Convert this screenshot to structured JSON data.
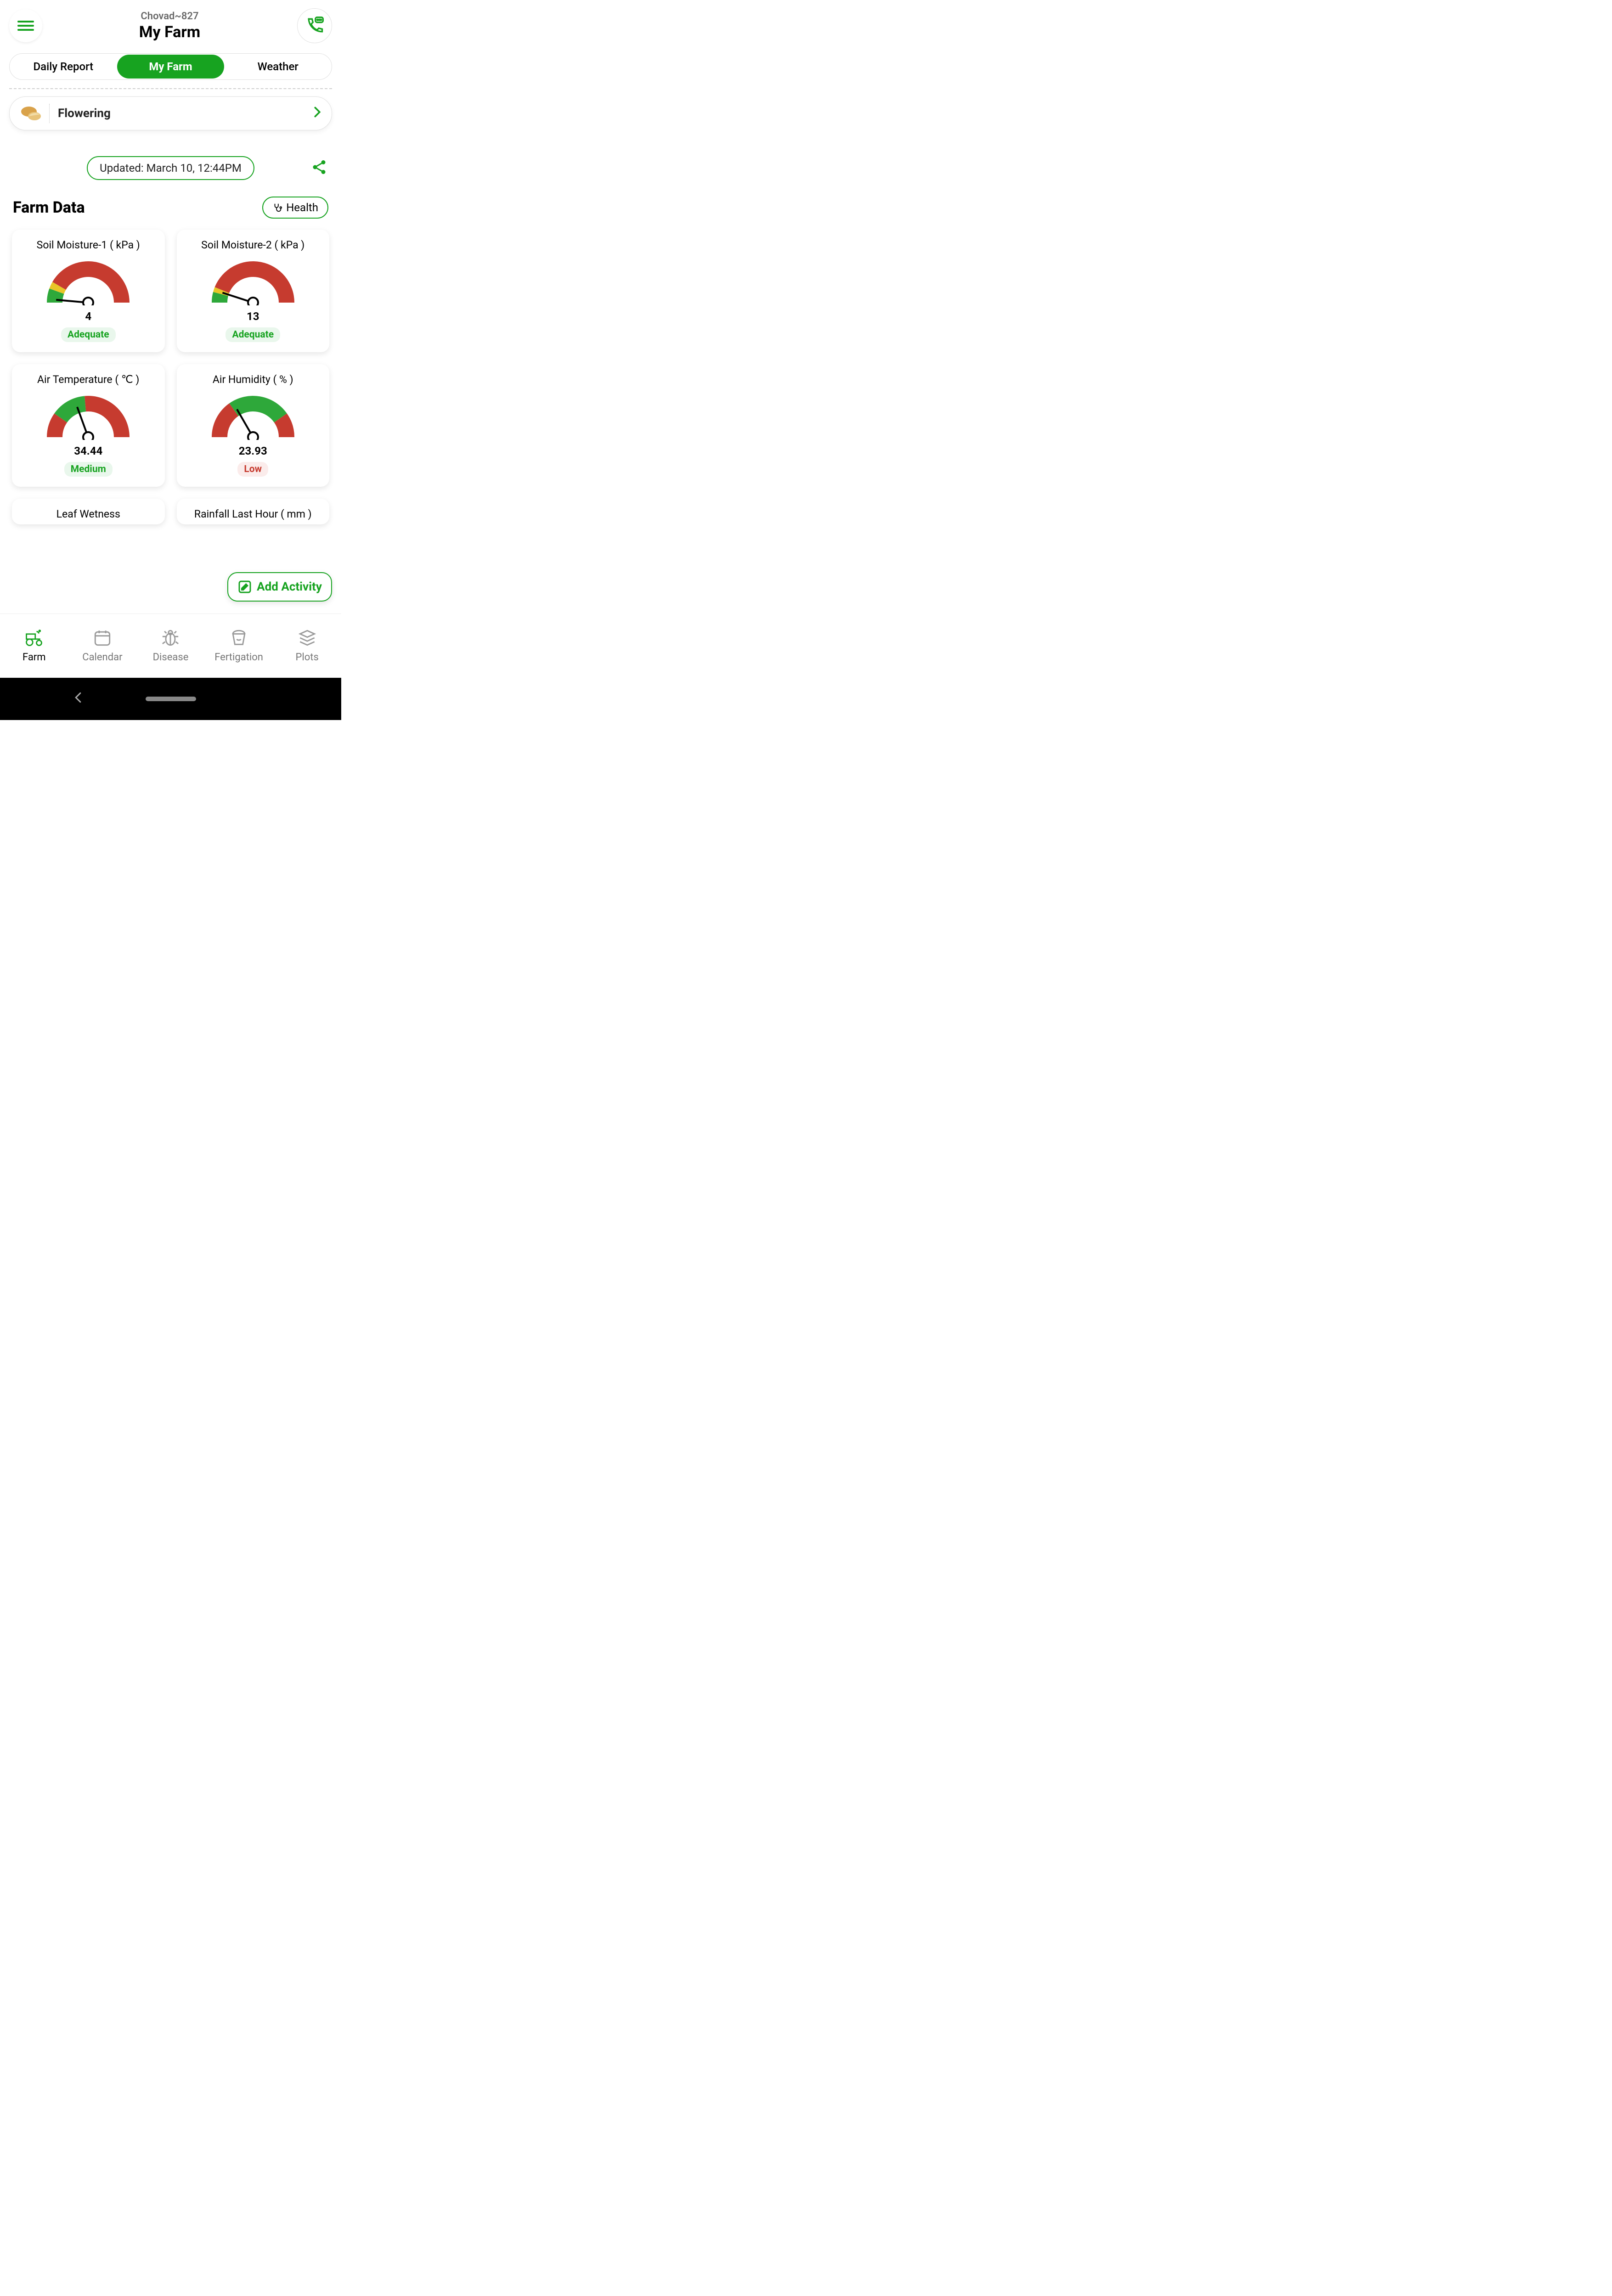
{
  "colors": {
    "primary": "#17a320",
    "gauge_red": "#c63b2f",
    "gauge_yellow": "#e8c627",
    "gauge_green": "#2ea83a",
    "text_muted": "#6a6a6a",
    "potato1": "#d9a24a",
    "potato2": "#e8c37a",
    "nav_inactive": "#9a9a9a"
  },
  "header": {
    "farm_id": "Chovad~827",
    "page_title": "My Farm"
  },
  "tabs": [
    {
      "label": "Daily Report",
      "active": false
    },
    {
      "label": "My Farm",
      "active": true
    },
    {
      "label": "Weather",
      "active": false
    }
  ],
  "crop_stage": {
    "name": "Flowering",
    "crop_icon": "potato"
  },
  "updated_label": "Updated: March 10, 12:44PM",
  "section": {
    "title": "Farm Data",
    "health_button": "Health"
  },
  "gauges": [
    {
      "title": "Soil Moisture-1 ( kPa )",
      "value": "4",
      "status_text": "Adequate",
      "status_class": "status-green",
      "needle_angle_deg": -85,
      "segments": [
        {
          "start": -90,
          "end": -70,
          "color": "#2ea83a"
        },
        {
          "start": -70,
          "end": -60,
          "color": "#e8c627"
        },
        {
          "start": -60,
          "end": 90,
          "color": "#c63b2f"
        }
      ]
    },
    {
      "title": "Soil Moisture-2 ( kPa )",
      "value": "13",
      "status_text": "Adequate",
      "status_class": "status-green",
      "needle_angle_deg": -72,
      "segments": [
        {
          "start": -90,
          "end": -75,
          "color": "#2ea83a"
        },
        {
          "start": -75,
          "end": -68,
          "color": "#e8c627"
        },
        {
          "start": -68,
          "end": 90,
          "color": "#c63b2f"
        }
      ]
    },
    {
      "title": "Air Temperature ( ℃ )",
      "value": "34.44",
      "status_text": "Medium",
      "status_class": "status-green",
      "needle_angle_deg": -20,
      "segments": [
        {
          "start": -90,
          "end": -55,
          "color": "#c63b2f"
        },
        {
          "start": -55,
          "end": -5,
          "color": "#2ea83a"
        },
        {
          "start": -5,
          "end": 90,
          "color": "#c63b2f"
        }
      ]
    },
    {
      "title": "Air Humidity ( % )",
      "value": "23.93",
      "status_text": "Low",
      "status_class": "status-red",
      "needle_angle_deg": -30,
      "segments": [
        {
          "start": -90,
          "end": -35,
          "color": "#c63b2f"
        },
        {
          "start": -35,
          "end": 55,
          "color": "#2ea83a"
        },
        {
          "start": 55,
          "end": 90,
          "color": "#c63b2f"
        }
      ]
    }
  ],
  "partial_cards": [
    {
      "title": "Leaf Wetness"
    },
    {
      "title": "Rainfall Last Hour ( mm )"
    }
  ],
  "add_activity_label": "Add Activity",
  "bottom_nav": [
    {
      "label": "Farm",
      "icon": "tractor",
      "active": true
    },
    {
      "label": "Calendar",
      "icon": "calendar",
      "active": false
    },
    {
      "label": "Disease",
      "icon": "bug",
      "active": false
    },
    {
      "label": "Fertigation",
      "icon": "bucket",
      "active": false
    },
    {
      "label": "Plots",
      "icon": "layers",
      "active": false
    }
  ]
}
